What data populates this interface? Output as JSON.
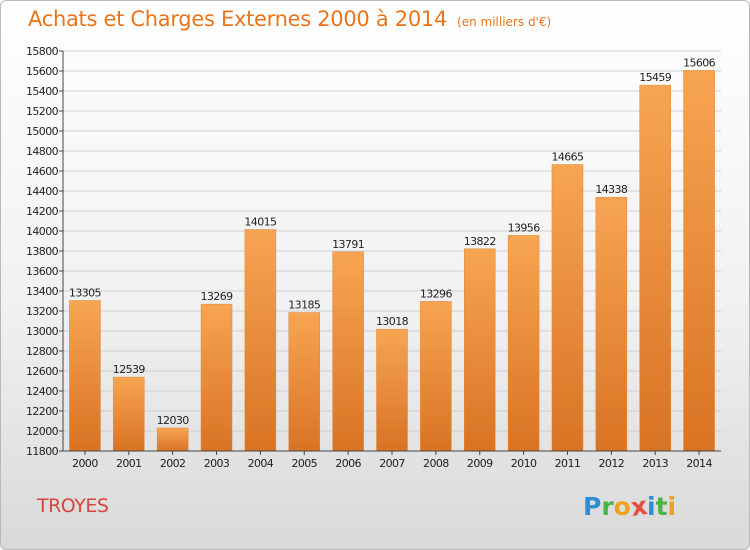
{
  "header": {
    "title": "Achats et Charges Externes 2000 à 2014",
    "subtitle": "(en milliers d'€)"
  },
  "footer": {
    "city": "TROYES",
    "logo": {
      "letters": [
        "P",
        "r",
        "o",
        "x",
        "i",
        "t",
        "i"
      ],
      "colors": [
        "#2b8fd6",
        "#47b649",
        "#f0a21f",
        "#e94d3d",
        "#2b8fd6",
        "#47b649",
        "#f0a21f"
      ]
    }
  },
  "colors": {
    "title": "#e8751a",
    "bar_light": "#f7a552",
    "bar_dark": "#d97324",
    "grid": "#d0d0d0",
    "axis": "#444444",
    "city": "#d5453f"
  },
  "chart_data": {
    "type": "bar",
    "categories": [
      "2000",
      "2001",
      "2002",
      "2003",
      "2004",
      "2005",
      "2006",
      "2007",
      "2008",
      "2009",
      "2010",
      "2011",
      "2012",
      "2013",
      "2014"
    ],
    "values": [
      13305,
      12539,
      12030,
      13269,
      14015,
      13185,
      13791,
      13018,
      13296,
      13822,
      13956,
      14665,
      14338,
      15459,
      15606
    ],
    "data_labels": [
      "13305",
      "12539",
      "12030",
      "13269",
      "14015",
      "13185",
      "13791",
      "13018",
      "13296",
      "13822",
      "13956",
      "14665",
      "14338",
      "15459",
      "15606"
    ],
    "ylim": [
      11800,
      15800
    ],
    "yticks": [
      "11800",
      "12000",
      "12200",
      "12400",
      "12600",
      "12800",
      "13000",
      "13200",
      "13400",
      "13600",
      "13800",
      "14000",
      "14200",
      "14400",
      "14600",
      "14800",
      "15000",
      "15200",
      "15400",
      "15600",
      "15800"
    ],
    "grid": true,
    "title": "Achats et Charges Externes 2000 à 2014",
    "xlabel": "",
    "ylabel": ""
  }
}
